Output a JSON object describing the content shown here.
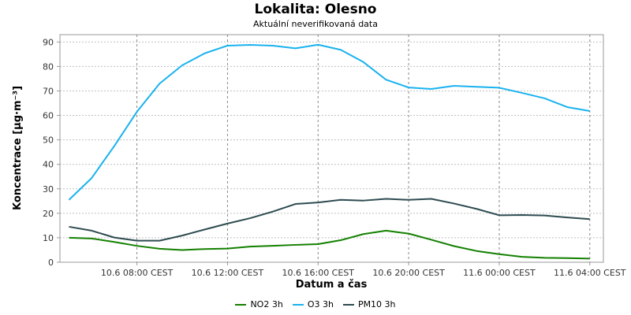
{
  "chart_data": {
    "type": "line",
    "title": "Lokalita: Olesno",
    "subtitle": "Aktuální neverifikovaná data",
    "xlabel": "Datum a čas",
    "ylabel": "Koncentrace [µg·m⁻³]",
    "ylim": [
      0,
      93
    ],
    "yticks": [
      0,
      10,
      20,
      30,
      40,
      50,
      60,
      70,
      80,
      90
    ],
    "x_hours": [
      5,
      6,
      7,
      8,
      9,
      10,
      11,
      12,
      13,
      14,
      15,
      16,
      17,
      18,
      19,
      20,
      21,
      22,
      23,
      24,
      25,
      26,
      27,
      28
    ],
    "xlim_hours": [
      4.6,
      28.6
    ],
    "xticks": [
      {
        "hour": 8,
        "label": "10.6 08:00 CEST"
      },
      {
        "hour": 12,
        "label": "10.6 12:00 CEST"
      },
      {
        "hour": 16,
        "label": "10.6 16:00 CEST"
      },
      {
        "hour": 20,
        "label": "10.6 20:00 CEST"
      },
      {
        "hour": 24,
        "label": "11.6 00:00 CEST"
      },
      {
        "hour": 28,
        "label": "11.6 04:00 CEST"
      }
    ],
    "grid": true,
    "legend_position": "bottom",
    "series": [
      {
        "name": "NO2 3h",
        "color": "#138000",
        "values": [
          10.0,
          9.7,
          8.3,
          6.7,
          5.5,
          5.0,
          5.4,
          5.6,
          6.4,
          6.7,
          7.1,
          7.4,
          9.0,
          11.5,
          12.9,
          11.7,
          9.2,
          6.6,
          4.6,
          3.3,
          2.2,
          1.8,
          1.7,
          1.5
        ]
      },
      {
        "name": "O3 3h",
        "color": "#1ab2ee",
        "values": [
          25.5,
          34.4,
          47.5,
          61.5,
          73.0,
          80.5,
          85.4,
          88.5,
          88.8,
          88.5,
          87.4,
          88.9,
          86.8,
          81.8,
          74.6,
          71.4,
          70.8,
          72.1,
          71.7,
          71.3,
          69.2,
          67.0,
          63.4,
          61.8
        ]
      },
      {
        "name": "PM10 3h",
        "color": "#2d4b50",
        "values": [
          14.5,
          12.9,
          10.1,
          8.8,
          8.8,
          10.9,
          13.4,
          15.8,
          18.0,
          20.7,
          23.8,
          24.4,
          25.5,
          25.2,
          25.9,
          25.5,
          25.9,
          24.0,
          21.8,
          19.2,
          19.3,
          19.1,
          18.3,
          17.6
        ]
      }
    ]
  }
}
